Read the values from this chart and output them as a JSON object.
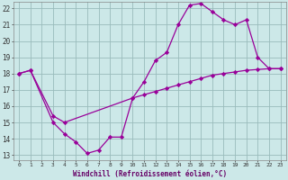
{
  "line1_x": [
    0,
    1,
    3,
    4,
    5,
    6,
    7,
    8,
    9,
    10,
    11,
    12,
    13,
    14,
    15,
    16,
    17,
    18,
    19,
    20,
    21,
    22,
    23
  ],
  "line1_y": [
    18.0,
    18.2,
    15.0,
    14.3,
    13.8,
    13.1,
    13.3,
    14.1,
    14.1,
    16.5,
    17.5,
    18.8,
    19.3,
    21.0,
    22.2,
    22.3,
    21.8,
    21.3,
    21.0,
    21.3,
    19.0,
    18.3,
    18.3
  ],
  "line2_x": [
    0,
    1,
    3,
    4,
    10,
    11,
    12,
    13,
    14,
    15,
    16,
    17,
    18,
    19,
    20,
    21,
    22,
    23
  ],
  "line2_y": [
    18.0,
    18.2,
    15.4,
    15.0,
    16.5,
    16.7,
    16.9,
    17.1,
    17.3,
    17.5,
    17.7,
    17.9,
    18.0,
    18.1,
    18.2,
    18.25,
    18.3,
    18.3
  ],
  "line_color": "#990099",
  "bg_color": "#cce8e8",
  "grid_color": "#99bbbb",
  "xlabel": "Windchill (Refroidissement éolien,°C)",
  "xlim": [
    -0.5,
    23.5
  ],
  "ylim": [
    12.7,
    22.4
  ],
  "yticks": [
    13,
    14,
    15,
    16,
    17,
    18,
    19,
    20,
    21,
    22
  ],
  "xticks": [
    0,
    1,
    2,
    3,
    4,
    5,
    6,
    7,
    8,
    9,
    10,
    11,
    12,
    13,
    14,
    15,
    16,
    17,
    18,
    19,
    20,
    21,
    22,
    23
  ]
}
